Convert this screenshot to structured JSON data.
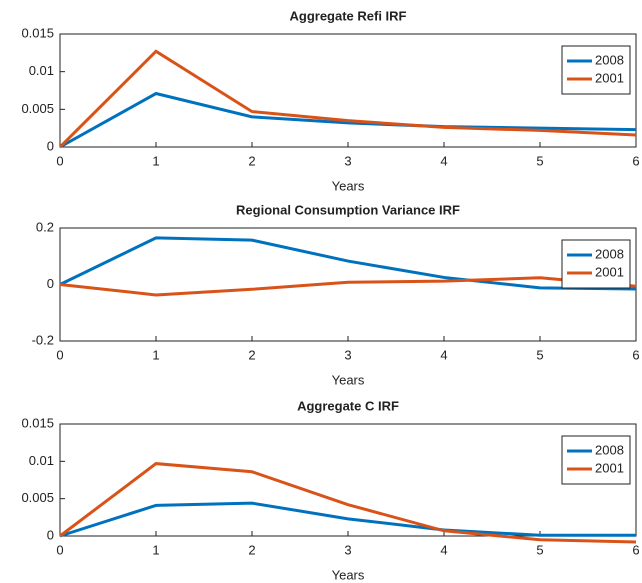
{
  "chart_data": [
    {
      "type": "line",
      "title": "Aggregate Refi IRF",
      "x_label": "Years",
      "x": [
        0,
        1,
        2,
        3,
        4,
        5,
        6
      ],
      "xlim": [
        0,
        6
      ],
      "xticks": [
        0,
        1,
        2,
        3,
        4,
        5,
        6
      ],
      "ylim": [
        0,
        0.015
      ],
      "yticks": [
        0,
        0.005,
        0.01,
        0.015
      ],
      "legend": "top-right",
      "series": [
        {
          "name": "2008",
          "color": "#0072bd",
          "values": [
            0,
            0.0071,
            0.004,
            0.0032,
            0.0027,
            0.0025,
            0.0023
          ]
        },
        {
          "name": "2001",
          "color": "#d95319",
          "values": [
            0,
            0.0127,
            0.0047,
            0.0035,
            0.0026,
            0.0022,
            0.0016
          ]
        }
      ]
    },
    {
      "type": "line",
      "title": "Regional Consumption Variance IRF",
      "x_label": "Years",
      "x": [
        0,
        1,
        2,
        3,
        4,
        5,
        6
      ],
      "xlim": [
        0,
        6
      ],
      "xticks": [
        0,
        1,
        2,
        3,
        4,
        5,
        6
      ],
      "ylim": [
        -0.2,
        0.2
      ],
      "yticks": [
        -0.2,
        0,
        0.2
      ],
      "legend": "top-right",
      "series": [
        {
          "name": "2008",
          "color": "#0072bd",
          "values": [
            0,
            0.165,
            0.157,
            0.083,
            0.025,
            -0.012,
            -0.016
          ]
        },
        {
          "name": "2001",
          "color": "#d95319",
          "values": [
            0,
            -0.037,
            -0.017,
            0.008,
            0.012,
            0.024,
            -0.006
          ]
        }
      ]
    },
    {
      "type": "line",
      "title": "Aggregate C IRF",
      "x_label": "Years",
      "x": [
        0,
        1,
        2,
        3,
        4,
        5,
        6
      ],
      "xlim": [
        0,
        6
      ],
      "xticks": [
        0,
        1,
        2,
        3,
        4,
        5,
        6
      ],
      "ylim": [
        0,
        0.015
      ],
      "yticks": [
        0,
        0.005,
        0.01,
        0.015
      ],
      "legend": "top-right",
      "series": [
        {
          "name": "2008",
          "color": "#0072bd",
          "values": [
            0,
            0.0041,
            0.0044,
            0.0023,
            0.0008,
            0.0001,
            0.0001
          ]
        },
        {
          "name": "2001",
          "color": "#d95319",
          "values": [
            0,
            0.0097,
            0.0086,
            0.0042,
            0.0007,
            -0.0005,
            -0.0008
          ]
        }
      ]
    }
  ]
}
